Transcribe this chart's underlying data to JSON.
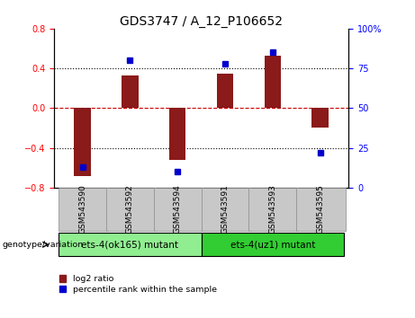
{
  "title": "GDS3747 / A_12_P106652",
  "categories": [
    "GSM543590",
    "GSM543592",
    "GSM543594",
    "GSM543591",
    "GSM543593",
    "GSM543595"
  ],
  "log2_values": [
    -0.68,
    0.33,
    -0.52,
    0.35,
    0.53,
    -0.2
  ],
  "percentile_values": [
    13,
    80,
    10,
    78,
    85,
    22
  ],
  "bar_color": "#8B1A1A",
  "dot_color": "#0000CC",
  "left_ylim": [
    -0.8,
    0.8
  ],
  "right_ylim": [
    0,
    100
  ],
  "left_yticks": [
    -0.8,
    -0.4,
    0,
    0.4,
    0.8
  ],
  "right_yticks": [
    0,
    25,
    50,
    75,
    100
  ],
  "right_yticklabels": [
    "0",
    "25",
    "50",
    "75",
    "100%"
  ],
  "hline_color": "#CC0000",
  "dotted_lines": [
    -0.4,
    0.4
  ],
  "group1_label": "ets-4(ok165) mutant",
  "group2_label": "ets-4(uz1) mutant",
  "group1_color": "#90EE90",
  "group2_color": "#32CD32",
  "genotype_label": "genotype/variation",
  "legend_red_label": "log2 ratio",
  "legend_blue_label": "percentile rank within the sample",
  "bar_width": 0.35,
  "title_fontsize": 10,
  "tick_fontsize": 7,
  "label_fontsize": 7.5
}
